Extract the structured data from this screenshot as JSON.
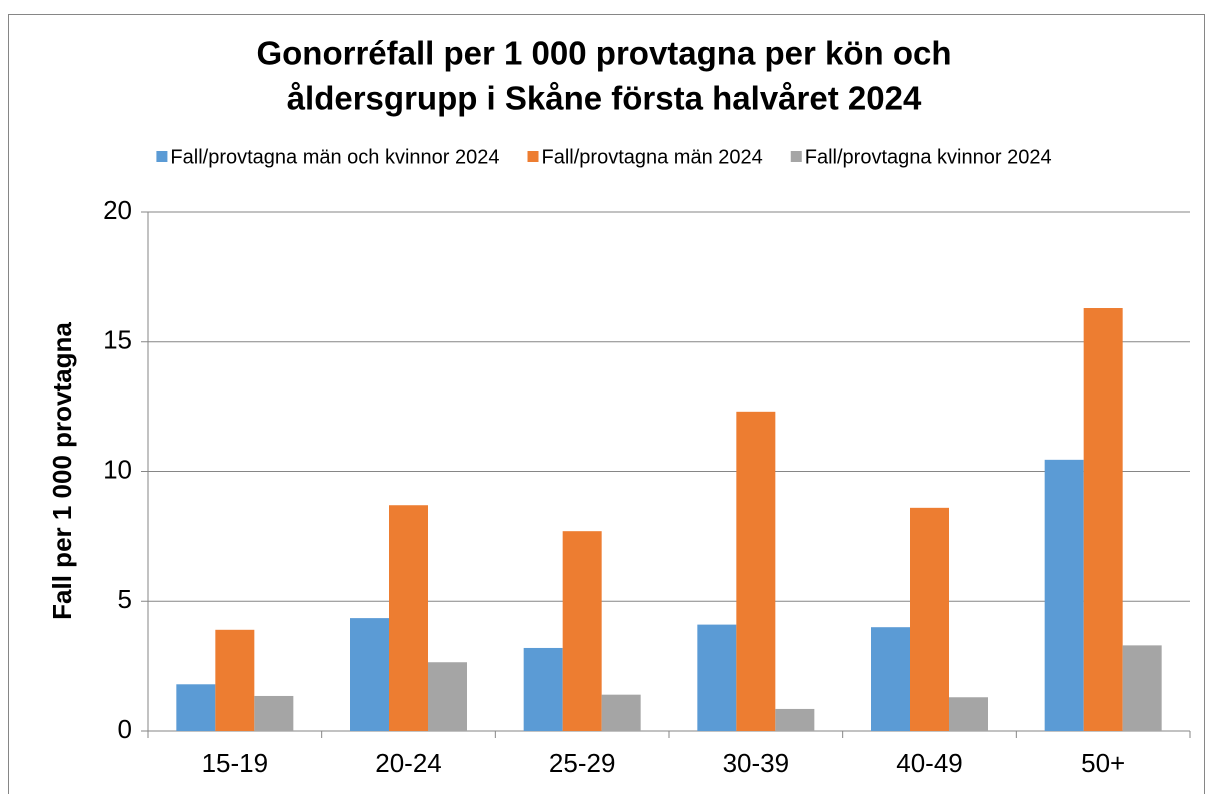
{
  "chart_data": {
    "type": "bar",
    "title": [
      "Gonorréfall per 1 000 provtagna per kön och",
      "åldersgrupp i Skåne första halvåret 2024"
    ],
    "y_label": "Fall per 1 000 provtagna",
    "categories": [
      "15-19",
      "20-24",
      "25-29",
      "30-39",
      "40-49",
      "50+"
    ],
    "series": [
      {
        "name": "Fall/provtagna män och kvinnor 2024",
        "color": "#5b9bd5",
        "values": [
          1.8,
          4.35,
          3.2,
          4.1,
          4.0,
          10.45
        ]
      },
      {
        "name": "Fall/provtagna män 2024",
        "color": "#ed7d31",
        "values": [
          3.9,
          8.7,
          7.7,
          12.3,
          8.6,
          16.3
        ]
      },
      {
        "name": "Fall/provtagna kvinnor 2024",
        "color": "#a5a5a5",
        "values": [
          1.35,
          2.65,
          1.4,
          0.85,
          1.3,
          3.3
        ]
      }
    ],
    "ylim": [
      0,
      20
    ],
    "yticks": [
      0,
      5,
      10,
      15,
      20
    ],
    "grid": true,
    "legend": "top"
  }
}
